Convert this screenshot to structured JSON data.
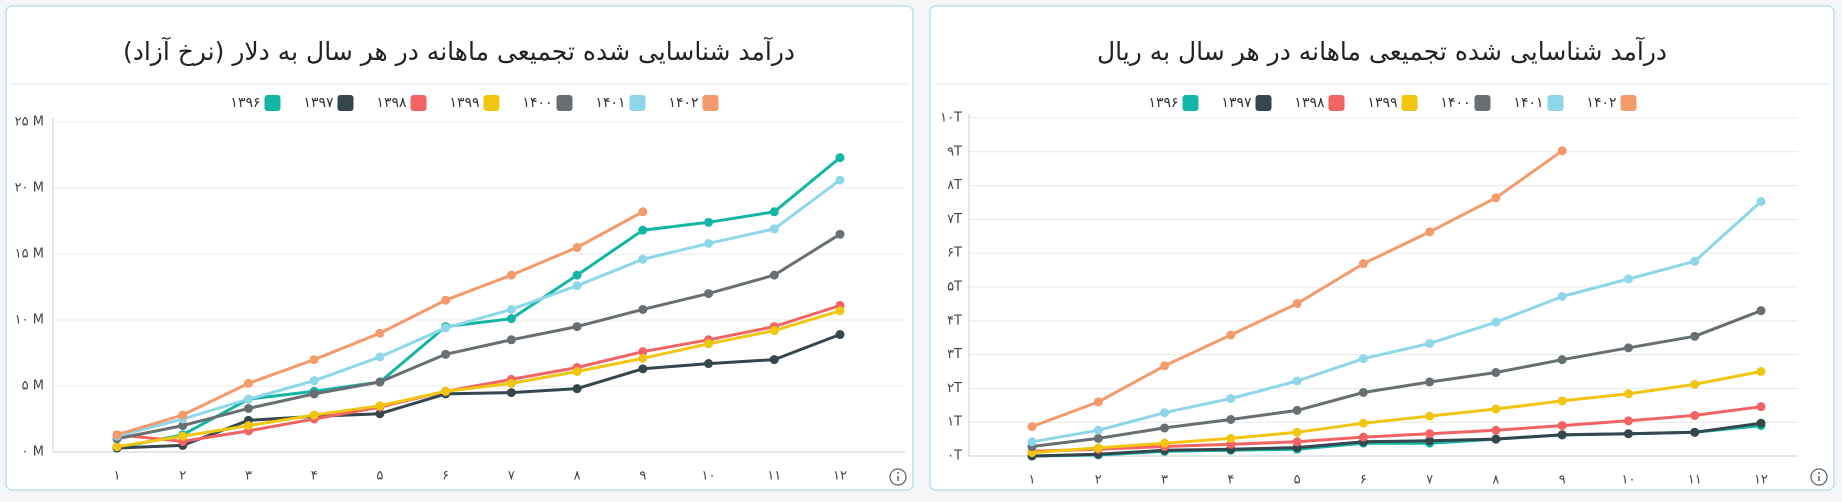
{
  "chart_data": [
    {
      "type": "line",
      "title": "درآمد شناسایی شده تجمیعی ماهانه در هر سال به دلار (نرخ آزاد)",
      "categories": [
        "۱",
        "۲",
        "۳",
        "۴",
        "۵",
        "۶",
        "۷",
        "۸",
        "۹",
        "۱۰",
        "۱۱",
        "۱۲"
      ],
      "ylim": [
        0,
        25
      ],
      "yticks": [
        {
          "value": 0,
          "label": "۰ M"
        },
        {
          "value": 5,
          "label": "۵ M"
        },
        {
          "value": 10,
          "label": "۱۰ M"
        },
        {
          "value": 15,
          "label": "۱۵ M"
        },
        {
          "value": 20,
          "label": "۲۰ M"
        },
        {
          "value": 25,
          "label": "۲۵ M"
        }
      ],
      "grid": true,
      "series": [
        {
          "name": "۱۳۹۶",
          "color": "#13b5a4",
          "values": [
            0.3,
            1.3,
            4.0,
            4.6,
            5.3,
            9.5,
            10.1,
            13.4,
            16.8,
            17.4,
            18.2,
            22.3
          ]
        },
        {
          "name": "۱۳۹۷",
          "color": "#35464d",
          "values": [
            0.3,
            0.5,
            2.4,
            2.7,
            2.9,
            4.4,
            4.5,
            4.8,
            6.3,
            6.7,
            7.0,
            8.9
          ]
        },
        {
          "name": "۱۳۹۸",
          "color": "#f26363",
          "values": [
            1.3,
            0.8,
            1.6,
            2.5,
            3.4,
            4.6,
            5.5,
            6.4,
            7.6,
            8.5,
            9.5,
            11.1
          ]
        },
        {
          "name": "۱۳۹۹",
          "color": "#f2c511",
          "values": [
            0.4,
            1.2,
            2.0,
            2.8,
            3.5,
            4.6,
            5.2,
            6.1,
            7.1,
            8.2,
            9.2,
            10.7
          ]
        },
        {
          "name": "۱۴۰۰",
          "color": "#676f73",
          "values": [
            1.0,
            2.0,
            3.3,
            4.4,
            5.3,
            7.4,
            8.5,
            9.5,
            10.8,
            12.0,
            13.4,
            16.5
          ]
        },
        {
          "name": "۱۴۰۱",
          "color": "#8ed6ea",
          "values": [
            1.2,
            2.5,
            4.0,
            5.4,
            7.2,
            9.4,
            10.8,
            12.6,
            14.6,
            15.8,
            16.9,
            20.6
          ]
        },
        {
          "name": "۱۴۰۲",
          "color": "#f59a6b",
          "values": [
            1.3,
            2.8,
            5.2,
            7.0,
            9.0,
            11.5,
            13.4,
            15.5,
            18.2,
            null,
            null,
            null
          ]
        }
      ]
    },
    {
      "type": "line",
      "title": "درآمد شناسایی شده تجمیعی ماهانه در هر سال به ریال",
      "categories": [
        "۱",
        "۲",
        "۳",
        "۴",
        "۵",
        "۶",
        "۷",
        "۸",
        "۹",
        "۱۰",
        "۱۱",
        "۱۲"
      ],
      "ylim": [
        0,
        10
      ],
      "yticks": [
        {
          "value": 0,
          "label": "۰T"
        },
        {
          "value": 1,
          "label": "۱T"
        },
        {
          "value": 2,
          "label": "۲T"
        },
        {
          "value": 3,
          "label": "۳T"
        },
        {
          "value": 4,
          "label": "۴T"
        },
        {
          "value": 5,
          "label": "۵T"
        },
        {
          "value": 6,
          "label": "۶T"
        },
        {
          "value": 7,
          "label": "۷T"
        },
        {
          "value": 8,
          "label": "۸T"
        },
        {
          "value": 9,
          "label": "۹T"
        },
        {
          "value": 10,
          "label": "۱۰T"
        }
      ],
      "grid": true,
      "series": [
        {
          "name": "۱۳۹۶",
          "color": "#13b5a4",
          "values": [
            0,
            0.03,
            0.14,
            0.17,
            0.2,
            0.38,
            0.38,
            0.5,
            0.62,
            0.66,
            0.7,
            0.9
          ]
        },
        {
          "name": "۱۳۹۷",
          "color": "#35464d",
          "values": [
            0,
            0.05,
            0.17,
            0.2,
            0.25,
            0.42,
            0.45,
            0.5,
            0.63,
            0.66,
            0.7,
            0.97
          ]
        },
        {
          "name": "۱۳۹۸",
          "color": "#f26363",
          "values": [
            0.14,
            0.2,
            0.28,
            0.35,
            0.42,
            0.56,
            0.66,
            0.76,
            0.9,
            1.04,
            1.2,
            1.46
          ]
        },
        {
          "name": "۱۳۹۹",
          "color": "#f2c511",
          "values": [
            0.1,
            0.24,
            0.38,
            0.52,
            0.7,
            0.97,
            1.18,
            1.39,
            1.63,
            1.84,
            2.12,
            2.5
          ]
        },
        {
          "name": "۱۴۰۰",
          "color": "#676f73",
          "values": [
            0.28,
            0.52,
            0.83,
            1.08,
            1.35,
            1.88,
            2.19,
            2.47,
            2.85,
            3.2,
            3.54,
            4.3
          ]
        },
        {
          "name": "۱۴۰۱",
          "color": "#8ed6ea",
          "values": [
            0.42,
            0.76,
            1.28,
            1.7,
            2.22,
            2.88,
            3.33,
            3.96,
            4.72,
            5.24,
            5.76,
            7.53
          ]
        },
        {
          "name": "۱۴۰۲",
          "color": "#f59a6b",
          "values": [
            0.87,
            1.6,
            2.67,
            3.58,
            4.51,
            5.69,
            6.63,
            7.64,
            9.03,
            null,
            null,
            null
          ]
        }
      ]
    }
  ]
}
